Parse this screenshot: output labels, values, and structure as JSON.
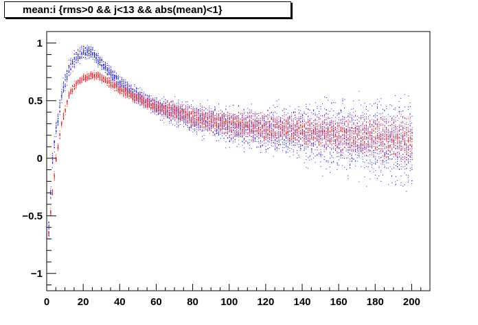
{
  "title": "mean:i {rms>0 && j<13 && abs(mean)<1}",
  "chart_data": {
    "type": "scatter",
    "title": "mean:i {rms>0 && j<13 && abs(mean)<1}",
    "xlabel": "",
    "ylabel": "",
    "xlim": [
      0,
      210
    ],
    "ylim": [
      -1.15,
      1.1
    ],
    "x_ticks": [
      0,
      20,
      40,
      60,
      80,
      100,
      120,
      140,
      160,
      180,
      200
    ],
    "y_ticks": [
      -1,
      -0.5,
      0,
      0.5,
      1
    ],
    "y_tick_labels": [
      "−1",
      "−0.5",
      "0",
      "0.5",
      "1"
    ],
    "x_range_points": [
      1,
      200
    ],
    "grid": false,
    "colors": {
      "series_blue": "#0000ff",
      "series_red": "#ff0000",
      "axis": "#000000"
    },
    "series": [
      {
        "color": "#0000ff",
        "trend": [
          [
            1,
            -0.6
          ],
          [
            3,
            0.0
          ],
          [
            5,
            0.25
          ],
          [
            8,
            0.55
          ],
          [
            12,
            0.78
          ],
          [
            16,
            0.88
          ],
          [
            20,
            0.92
          ],
          [
            24,
            0.93
          ],
          [
            28,
            0.86
          ],
          [
            32,
            0.78
          ],
          [
            40,
            0.66
          ],
          [
            50,
            0.54
          ],
          [
            60,
            0.45
          ],
          [
            80,
            0.35
          ],
          [
            100,
            0.28
          ],
          [
            120,
            0.25
          ],
          [
            140,
            0.22
          ],
          [
            160,
            0.2
          ],
          [
            180,
            0.17
          ],
          [
            200,
            0.15
          ]
        ],
        "spread": [
          [
            1,
            0.1
          ],
          [
            10,
            0.1
          ],
          [
            25,
            0.08
          ],
          [
            40,
            0.08
          ],
          [
            60,
            0.12
          ],
          [
            80,
            0.18
          ],
          [
            100,
            0.22
          ],
          [
            120,
            0.28
          ],
          [
            140,
            0.33
          ],
          [
            160,
            0.42
          ],
          [
            180,
            0.48
          ],
          [
            200,
            0.52
          ]
        ]
      },
      {
        "color": "#ff0000",
        "trend": [
          [
            1,
            -0.65
          ],
          [
            3,
            -0.3
          ],
          [
            5,
            0.0
          ],
          [
            8,
            0.3
          ],
          [
            12,
            0.55
          ],
          [
            16,
            0.65
          ],
          [
            20,
            0.7
          ],
          [
            24,
            0.72
          ],
          [
            28,
            0.72
          ],
          [
            32,
            0.68
          ],
          [
            40,
            0.6
          ],
          [
            50,
            0.52
          ],
          [
            60,
            0.45
          ],
          [
            80,
            0.36
          ],
          [
            100,
            0.3
          ],
          [
            120,
            0.27
          ],
          [
            140,
            0.24
          ],
          [
            160,
            0.21
          ],
          [
            180,
            0.18
          ],
          [
            200,
            0.15
          ]
        ],
        "spread": [
          [
            1,
            0.05
          ],
          [
            10,
            0.05
          ],
          [
            25,
            0.05
          ],
          [
            40,
            0.06
          ],
          [
            60,
            0.08
          ],
          [
            80,
            0.12
          ],
          [
            100,
            0.15
          ],
          [
            120,
            0.17
          ],
          [
            140,
            0.19
          ],
          [
            160,
            0.22
          ],
          [
            180,
            0.25
          ],
          [
            200,
            0.28
          ]
        ]
      }
    ]
  }
}
